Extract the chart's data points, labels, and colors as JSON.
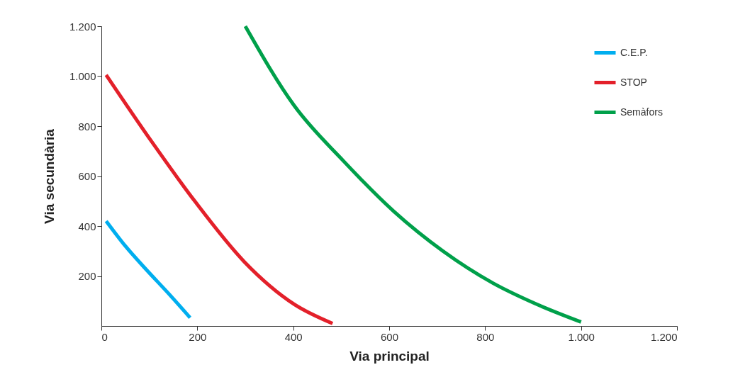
{
  "chart_data": {
    "type": "line",
    "xlabel": "Via principal",
    "ylabel": "Via secundària",
    "xlim": [
      0,
      1200
    ],
    "ylim": [
      0,
      1200
    ],
    "xticks": [
      0,
      200,
      400,
      600,
      800,
      {
        "value": 1000,
        "label": "1.000"
      },
      {
        "value": 1200,
        "label": "1.200"
      }
    ],
    "yticks": [
      200,
      400,
      600,
      800,
      {
        "value": 1000,
        "label": "1.000"
      },
      {
        "value": 1200,
        "label": "1.200"
      }
    ],
    "grid": false,
    "legend": "top right",
    "marker": "none",
    "line_style": "solid",
    "series": [
      {
        "name": "C.E.P.",
        "color": "#00aeef",
        "x": [
          10,
          50,
          92,
          140,
          185
        ],
        "values": [
          420,
          320,
          229,
          130,
          33
        ]
      },
      {
        "name": "STOP",
        "color": "#e3202a",
        "x": [
          10,
          106,
          195,
          298,
          402,
          482
        ],
        "values": [
          1005,
          735,
          499,
          257,
          87,
          10
        ]
      },
      {
        "name": "Semàfors",
        "color": "#00a04a",
        "x": [
          300,
          402,
          505,
          609,
          712,
          816,
          904,
          1000
        ],
        "values": [
          1200,
          882,
          660,
          460,
          300,
          172,
          90,
          16
        ]
      }
    ]
  }
}
